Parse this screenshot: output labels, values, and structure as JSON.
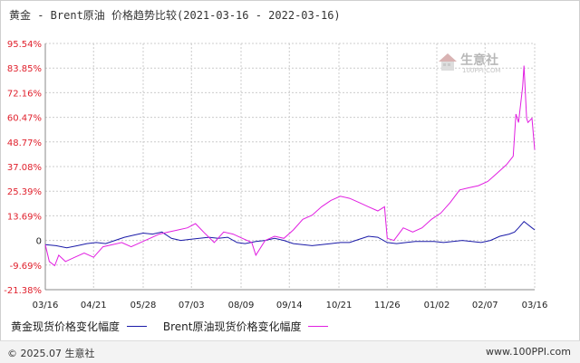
{
  "title": "黄金 - Brent原油 价格趋势比较(2021-03-16 - 2022-03-16)",
  "watermark": {
    "text": "生意社",
    "sub": "100PPI.COM"
  },
  "footer": {
    "copyright": "© 2025.07 生意社",
    "site": "www.100PPI.com"
  },
  "colors": {
    "gold": "#1a1aa8",
    "brent": "#e11ee1",
    "ytick": "#e0202c",
    "zero_tick": "#222222",
    "grid": "#cccccc"
  },
  "chart_data": {
    "type": "line",
    "title": "黄金 - Brent原油 价格趋势比较(2021-03-16 - 2022-03-16)",
    "xlabel": "",
    "ylabel": "",
    "grid": true,
    "legend_position": "bottom-left",
    "ylim": [
      -21.38,
      95.54
    ],
    "xlim": [
      "2021-03-16",
      "2022-03-16"
    ],
    "y_ticks": [
      "95.54%",
      "83.85%",
      "72.16%",
      "60.47%",
      "48.77%",
      "37.08%",
      "25.39%",
      "13.69%",
      "0",
      "-9.69%",
      "-21.38%"
    ],
    "x_tick_labels": [
      "03/16",
      "04/21",
      "05/28",
      "07/03",
      "08/09",
      "09/14",
      "10/21",
      "11/26",
      "01/02",
      "02/07",
      "03/16"
    ],
    "x_tick_dates": [
      "2021-03-16",
      "2021-04-21",
      "2021-05-28",
      "2021-07-03",
      "2021-08-09",
      "2021-09-14",
      "2021-10-21",
      "2021-11-26",
      "2022-01-02",
      "2022-02-07",
      "2022-03-16"
    ],
    "series": [
      {
        "name": "黄金现货价格变化幅度",
        "color": "#1a1aa8",
        "points": [
          [
            "2021-03-16",
            0
          ],
          [
            "2021-03-24",
            -0.5
          ],
          [
            "2021-04-01",
            -1.5
          ],
          [
            "2021-04-09",
            -0.5
          ],
          [
            "2021-04-16",
            0.5
          ],
          [
            "2021-04-23",
            1
          ],
          [
            "2021-04-30",
            0.5
          ],
          [
            "2021-05-07",
            2
          ],
          [
            "2021-05-14",
            3.5
          ],
          [
            "2021-05-21",
            4.5
          ],
          [
            "2021-05-28",
            5.5
          ],
          [
            "2021-06-04",
            5
          ],
          [
            "2021-06-11",
            6
          ],
          [
            "2021-06-18",
            3
          ],
          [
            "2021-06-25",
            2
          ],
          [
            "2021-07-02",
            2.5
          ],
          [
            "2021-07-09",
            3
          ],
          [
            "2021-07-16",
            3.5
          ],
          [
            "2021-07-23",
            3
          ],
          [
            "2021-07-30",
            3.5
          ],
          [
            "2021-08-06",
            1
          ],
          [
            "2021-08-12",
            0.5
          ],
          [
            "2021-08-20",
            1.5
          ],
          [
            "2021-08-27",
            2
          ],
          [
            "2021-09-03",
            3
          ],
          [
            "2021-09-10",
            2
          ],
          [
            "2021-09-17",
            0.5
          ],
          [
            "2021-09-24",
            0
          ],
          [
            "2021-10-01",
            -0.5
          ],
          [
            "2021-10-08",
            0
          ],
          [
            "2021-10-15",
            0.5
          ],
          [
            "2021-10-22",
            1
          ],
          [
            "2021-10-29",
            1
          ],
          [
            "2021-11-05",
            2.5
          ],
          [
            "2021-11-12",
            4
          ],
          [
            "2021-11-19",
            3.5
          ],
          [
            "2021-11-26",
            1
          ],
          [
            "2021-12-03",
            0.5
          ],
          [
            "2021-12-10",
            1
          ],
          [
            "2021-12-17",
            1.5
          ],
          [
            "2021-12-24",
            1.5
          ],
          [
            "2021-12-31",
            1.5
          ],
          [
            "2022-01-07",
            1
          ],
          [
            "2022-01-14",
            1.5
          ],
          [
            "2022-01-21",
            2
          ],
          [
            "2022-01-28",
            1.5
          ],
          [
            "2022-02-04",
            1
          ],
          [
            "2022-02-11",
            2
          ],
          [
            "2022-02-18",
            4
          ],
          [
            "2022-02-25",
            5
          ],
          [
            "2022-03-01",
            6
          ],
          [
            "2022-03-04",
            8
          ],
          [
            "2022-03-08",
            11
          ],
          [
            "2022-03-10",
            10
          ],
          [
            "2022-03-14",
            8
          ],
          [
            "2022-03-16",
            7
          ]
        ]
      },
      {
        "name": "Brent原油现货价格变化幅度",
        "color": "#e11ee1",
        "points": [
          [
            "2021-03-16",
            0
          ],
          [
            "2021-03-19",
            -8
          ],
          [
            "2021-03-23",
            -10
          ],
          [
            "2021-03-26",
            -5
          ],
          [
            "2021-03-31",
            -8
          ],
          [
            "2021-04-07",
            -6
          ],
          [
            "2021-04-14",
            -4
          ],
          [
            "2021-04-21",
            -6
          ],
          [
            "2021-04-28",
            -1
          ],
          [
            "2021-05-05",
            0
          ],
          [
            "2021-05-12",
            1
          ],
          [
            "2021-05-19",
            -1
          ],
          [
            "2021-05-26",
            1
          ],
          [
            "2021-06-02",
            3
          ],
          [
            "2021-06-09",
            5
          ],
          [
            "2021-06-16",
            6
          ],
          [
            "2021-06-23",
            7
          ],
          [
            "2021-06-30",
            8
          ],
          [
            "2021-07-06",
            10
          ],
          [
            "2021-07-12",
            6
          ],
          [
            "2021-07-20",
            1
          ],
          [
            "2021-07-27",
            6
          ],
          [
            "2021-08-03",
            5
          ],
          [
            "2021-08-10",
            3
          ],
          [
            "2021-08-17",
            1
          ],
          [
            "2021-08-20",
            -5
          ],
          [
            "2021-08-27",
            2
          ],
          [
            "2021-09-03",
            4
          ],
          [
            "2021-09-10",
            3
          ],
          [
            "2021-09-17",
            7
          ],
          [
            "2021-09-24",
            12
          ],
          [
            "2021-10-01",
            14
          ],
          [
            "2021-10-08",
            18
          ],
          [
            "2021-10-15",
            21
          ],
          [
            "2021-10-22",
            23
          ],
          [
            "2021-10-29",
            22
          ],
          [
            "2021-11-05",
            20
          ],
          [
            "2021-11-12",
            18
          ],
          [
            "2021-11-19",
            16
          ],
          [
            "2021-11-24",
            18
          ],
          [
            "2021-11-26",
            3
          ],
          [
            "2021-12-01",
            2
          ],
          [
            "2021-12-08",
            8
          ],
          [
            "2021-12-15",
            6
          ],
          [
            "2021-12-22",
            8
          ],
          [
            "2021-12-29",
            12
          ],
          [
            "2022-01-05",
            15
          ],
          [
            "2022-01-12",
            20
          ],
          [
            "2022-01-19",
            26
          ],
          [
            "2022-01-26",
            27
          ],
          [
            "2022-02-02",
            28
          ],
          [
            "2022-02-09",
            30
          ],
          [
            "2022-02-16",
            34
          ],
          [
            "2022-02-23",
            38
          ],
          [
            "2022-02-28",
            42
          ],
          [
            "2022-03-02",
            62
          ],
          [
            "2022-03-04",
            58
          ],
          [
            "2022-03-07",
            75
          ],
          [
            "2022-03-08",
            85
          ],
          [
            "2022-03-10",
            60
          ],
          [
            "2022-03-11",
            58
          ],
          [
            "2022-03-14",
            60
          ],
          [
            "2022-03-16",
            45
          ]
        ]
      }
    ]
  }
}
